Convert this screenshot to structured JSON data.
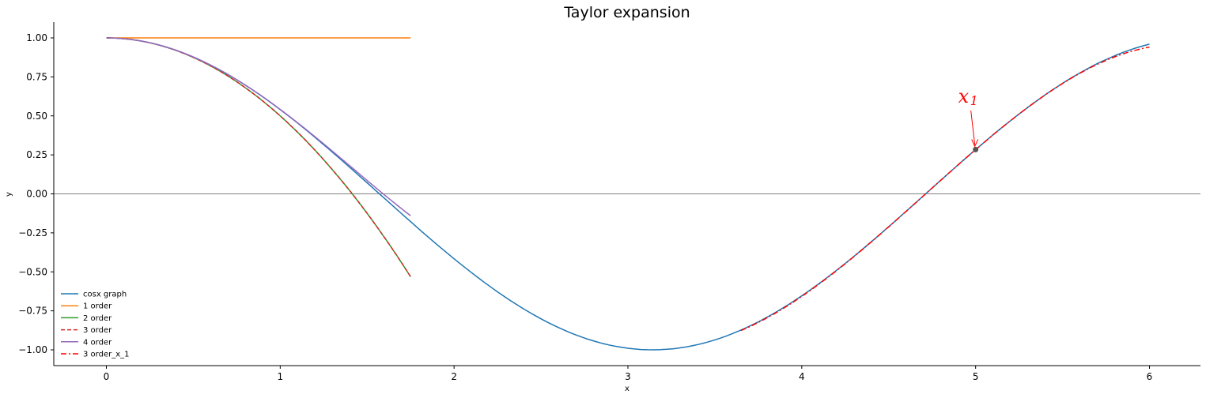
{
  "chart_data": {
    "type": "line",
    "title": "Taylor expansion",
    "xlabel": "x",
    "ylabel": "y",
    "xlim": [
      -0.3,
      6.3
    ],
    "ylim": [
      -1.1,
      1.1
    ],
    "xticks": [
      0,
      1,
      2,
      3,
      4,
      5,
      6
    ],
    "xtick_labels": [
      "0",
      "1",
      "2",
      "3",
      "4",
      "5",
      "6"
    ],
    "yticks": [
      1.0,
      0.75,
      0.5,
      0.25,
      0.0,
      -0.25,
      -0.5,
      -0.75,
      -1.0
    ],
    "ytick_labels": [
      "1.00",
      "0.75",
      "0.50",
      "0.25",
      "0.00",
      "−0.25",
      "−0.50",
      "−0.75",
      "−1.00"
    ],
    "grid": false,
    "horizontal_line_y": 0,
    "legend_position": "lower-left",
    "series": [
      {
        "name": "cosx graph",
        "color": "#1f77b4",
        "style": "solid",
        "x": [
          0,
          0.5,
          1.0,
          1.5,
          2.0,
          2.5,
          3.0,
          3.14,
          3.5,
          4.0,
          4.5,
          5.0,
          5.5,
          6.0
        ],
        "y": [
          1.0,
          0.878,
          0.54,
          0.071,
          -0.416,
          -0.801,
          -0.99,
          -1.0,
          -0.936,
          -0.654,
          -0.211,
          0.284,
          0.709,
          0.96
        ]
      },
      {
        "name": "1 order",
        "color": "#ff7f0e",
        "style": "solid",
        "x": [
          0,
          1.75
        ],
        "y": [
          1.0,
          1.0
        ]
      },
      {
        "name": "2 order",
        "color": "#2ca02c",
        "style": "solid",
        "x": [
          0,
          0.5,
          1.0,
          1.25,
          1.5,
          1.75
        ],
        "y": [
          1.0,
          0.875,
          0.5,
          0.219,
          -0.125,
          -0.531
        ]
      },
      {
        "name": "3 order",
        "color": "#d62728",
        "style": "dashed",
        "x": [
          0,
          0.5,
          1.0,
          1.25,
          1.5,
          1.75
        ],
        "y": [
          1.0,
          0.875,
          0.5,
          0.219,
          -0.125,
          -0.531
        ]
      },
      {
        "name": "4 order",
        "color": "#9467bd",
        "style": "solid",
        "x": [
          0,
          0.5,
          1.0,
          1.25,
          1.5,
          1.75
        ],
        "y": [
          1.0,
          0.878,
          0.542,
          0.321,
          0.086,
          -0.156
        ]
      },
      {
        "name": "3 order_x_1",
        "color": "#ff0000",
        "style": "dashdot",
        "x": [
          3.65,
          4.0,
          4.5,
          5.0,
          5.5,
          6.0
        ],
        "y": [
          -0.88,
          -0.654,
          -0.211,
          0.284,
          0.709,
          0.94
        ]
      }
    ],
    "annotation": {
      "text": "x",
      "subscript": "1",
      "x": 5.0,
      "y": 0.284,
      "color": "#ff0000"
    }
  }
}
